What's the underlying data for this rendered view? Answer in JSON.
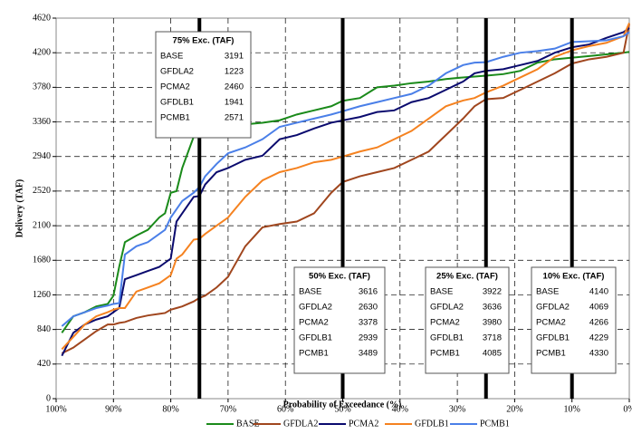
{
  "chart_data": {
    "type": "line",
    "y_label": "Delivery (TAF)",
    "x_label": "Probability of Exceedance (%)",
    "x": [
      99,
      97,
      95,
      93,
      91,
      90,
      89,
      88,
      86,
      84,
      82,
      81,
      80,
      79,
      78,
      76,
      75,
      74,
      72,
      70,
      67,
      64,
      61,
      58,
      55,
      52,
      50,
      47,
      44,
      41,
      38,
      35,
      32,
      29,
      27,
      25,
      22,
      19,
      16,
      13,
      10,
      7,
      4,
      1,
      0
    ],
    "series": [
      {
        "name": "BASE",
        "color": "#1a8a1a",
        "values": [
          800,
          1000,
          1050,
          1120,
          1150,
          1250,
          1600,
          1900,
          1980,
          2050,
          2200,
          2250,
          2500,
          2520,
          2800,
          3180,
          3191,
          3200,
          3280,
          3300,
          3330,
          3350,
          3380,
          3450,
          3500,
          3550,
          3616,
          3650,
          3780,
          3800,
          3830,
          3850,
          3880,
          3900,
          3910,
          3922,
          3940,
          3980,
          4080,
          4120,
          4140,
          4160,
          4180,
          4200,
          4210
        ]
      },
      {
        "name": "GFDLA2",
        "color": "#a0461e",
        "values": [
          550,
          620,
          720,
          820,
          900,
          900,
          920,
          930,
          980,
          1010,
          1030,
          1040,
          1080,
          1100,
          1120,
          1180,
          1223,
          1250,
          1350,
          1480,
          1850,
          2080,
          2120,
          2150,
          2250,
          2500,
          2630,
          2700,
          2750,
          2800,
          2900,
          3000,
          3200,
          3400,
          3550,
          3636,
          3650,
          3750,
          3850,
          3950,
          4069,
          4120,
          4150,
          4200,
          4550
        ]
      },
      {
        "name": "PCMA2",
        "color": "#0a0a6e",
        "values": [
          520,
          800,
          900,
          960,
          1000,
          1050,
          1100,
          1450,
          1500,
          1550,
          1600,
          1650,
          1700,
          2150,
          2250,
          2450,
          2460,
          2600,
          2750,
          2800,
          2900,
          2950,
          3150,
          3200,
          3280,
          3350,
          3378,
          3420,
          3480,
          3500,
          3600,
          3650,
          3750,
          3850,
          3950,
          3980,
          4000,
          4050,
          4100,
          4200,
          4266,
          4300,
          4380,
          4450,
          4500
        ]
      },
      {
        "name": "GFDLB1",
        "color": "#f58220",
        "values": [
          600,
          750,
          900,
          1000,
          1050,
          1080,
          1100,
          1100,
          1300,
          1350,
          1400,
          1450,
          1500,
          1700,
          1750,
          1930,
          1941,
          2000,
          2100,
          2200,
          2450,
          2650,
          2750,
          2800,
          2870,
          2900,
          2939,
          3000,
          3050,
          3150,
          3250,
          3400,
          3550,
          3620,
          3650,
          3718,
          3800,
          3900,
          4000,
          4150,
          4229,
          4280,
          4320,
          4400,
          4560
        ]
      },
      {
        "name": "PCMB1",
        "color": "#4a7fe8",
        "values": [
          880,
          1000,
          1050,
          1100,
          1130,
          1150,
          1160,
          1750,
          1850,
          1900,
          2000,
          2050,
          2200,
          2300,
          2400,
          2500,
          2571,
          2700,
          2850,
          2980,
          3050,
          3150,
          3300,
          3350,
          3400,
          3450,
          3489,
          3550,
          3600,
          3650,
          3700,
          3800,
          3950,
          4050,
          4080,
          4085,
          4150,
          4200,
          4220,
          4250,
          4330,
          4340,
          4350,
          4400,
          4450
        ]
      }
    ],
    "xlim": [
      100,
      0
    ],
    "xticks": [
      {
        "value": 100,
        "label": "100%"
      },
      {
        "value": 90,
        "label": "90%"
      },
      {
        "value": 80,
        "label": "80%"
      },
      {
        "value": 70,
        "label": "70%"
      },
      {
        "value": 60,
        "label": "60%"
      },
      {
        "value": 50,
        "label": "50%"
      },
      {
        "value": 40,
        "label": "40%"
      },
      {
        "value": 30,
        "label": "30%"
      },
      {
        "value": 20,
        "label": "20%"
      },
      {
        "value": 10,
        "label": "10%"
      },
      {
        "value": 0,
        "label": "0%"
      }
    ],
    "ylim": [
      0,
      4620
    ],
    "yticks": [
      0,
      420,
      840,
      1260,
      1680,
      2100,
      2520,
      2940,
      3360,
      3780,
      4200,
      4620
    ],
    "grid": true,
    "legend": "bottom",
    "reference_lines": [
      75,
      50,
      25,
      10
    ],
    "annotations": [
      {
        "title": "75% Exc. (TAF)",
        "rows": [
          [
            "BASE",
            3191
          ],
          [
            "GFDLA2",
            1223
          ],
          [
            "PCMA2",
            2460
          ],
          [
            "GFDLB1",
            1941
          ],
          [
            "PCMB1",
            2571
          ]
        ]
      },
      {
        "title": "50% Exc. (TAF)",
        "rows": [
          [
            "BASE",
            3616
          ],
          [
            "GFDLA2",
            2630
          ],
          [
            "PCMA2",
            3378
          ],
          [
            "GFDLB1",
            2939
          ],
          [
            "PCMB1",
            3489
          ]
        ]
      },
      {
        "title": "25% Exc. (TAF)",
        "rows": [
          [
            "BASE",
            3922
          ],
          [
            "GFDLA2",
            3636
          ],
          [
            "PCMA2",
            3980
          ],
          [
            "GFDLB1",
            3718
          ],
          [
            "PCMB1",
            4085
          ]
        ]
      },
      {
        "title": "10% Exc. (TAF)",
        "rows": [
          [
            "BASE",
            4140
          ],
          [
            "GFDLA2",
            4069
          ],
          [
            "PCMA2",
            4266
          ],
          [
            "GFDLB1",
            4229
          ],
          [
            "PCMB1",
            4330
          ]
        ]
      }
    ]
  }
}
